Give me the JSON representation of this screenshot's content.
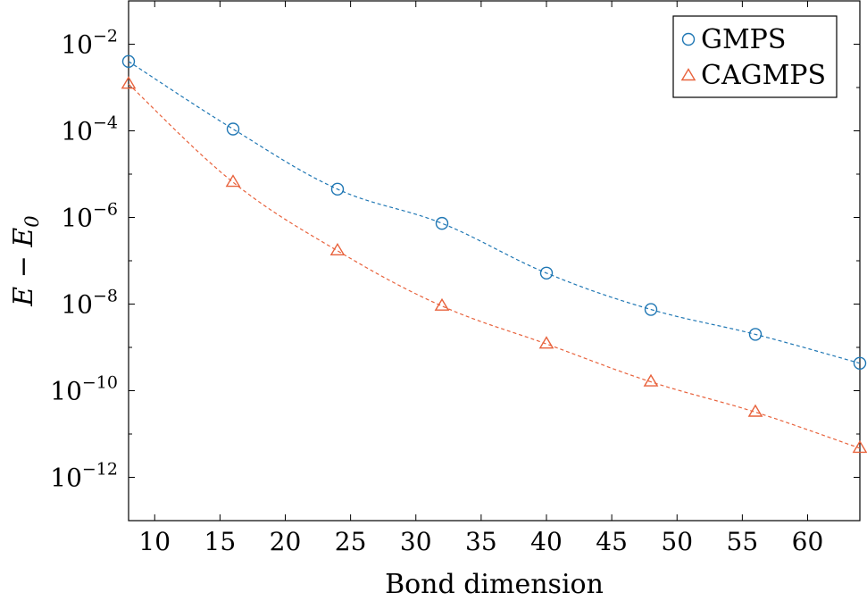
{
  "chart_data": {
    "type": "line",
    "title": "",
    "xlabel": "Bond dimension",
    "ylabel": "E − E",
    "ylabel_subscript": "0",
    "xlim": [
      8,
      64
    ],
    "ylim": [
      1e-13,
      0.1
    ],
    "yscale": "log",
    "grid": false,
    "legend_position": "top-right",
    "xticks": [
      {
        "value": 10,
        "label": "10"
      },
      {
        "value": 15,
        "label": "15"
      },
      {
        "value": 20,
        "label": "20"
      },
      {
        "value": 25,
        "label": "25"
      },
      {
        "value": 30,
        "label": "30"
      },
      {
        "value": 35,
        "label": "35"
      },
      {
        "value": 40,
        "label": "40"
      },
      {
        "value": 45,
        "label": "45"
      },
      {
        "value": 50,
        "label": "50"
      },
      {
        "value": 55,
        "label": "55"
      },
      {
        "value": 60,
        "label": "60"
      }
    ],
    "yticks": [
      {
        "value": 0.01,
        "base": "10",
        "exp": "−2"
      },
      {
        "value": 0.0001,
        "base": "10",
        "exp": "−4"
      },
      {
        "value": 1e-06,
        "base": "10",
        "exp": "−6"
      },
      {
        "value": 1e-08,
        "base": "10",
        "exp": "−8"
      },
      {
        "value": 1e-10,
        "base": "10",
        "exp": "−10"
      },
      {
        "value": 1e-12,
        "base": "10",
        "exp": "−12"
      }
    ],
    "x": [
      8,
      16,
      24,
      32,
      40,
      48,
      56,
      64
    ],
    "series": [
      {
        "name": "GMPS",
        "marker": "circle",
        "color": "#1f77b4",
        "values": [
          0.004,
          0.00011,
          4.5e-06,
          7.3e-07,
          5.2e-08,
          7.5e-09,
          2e-09,
          4.3e-10
        ]
      },
      {
        "name": "CAGMPS",
        "marker": "triangle",
        "color": "#e8623c",
        "values": [
          0.0012,
          6.5e-06,
          1.7e-07,
          9e-09,
          1.2e-09,
          1.6e-10,
          3.2e-11,
          4.7e-12
        ]
      }
    ]
  }
}
